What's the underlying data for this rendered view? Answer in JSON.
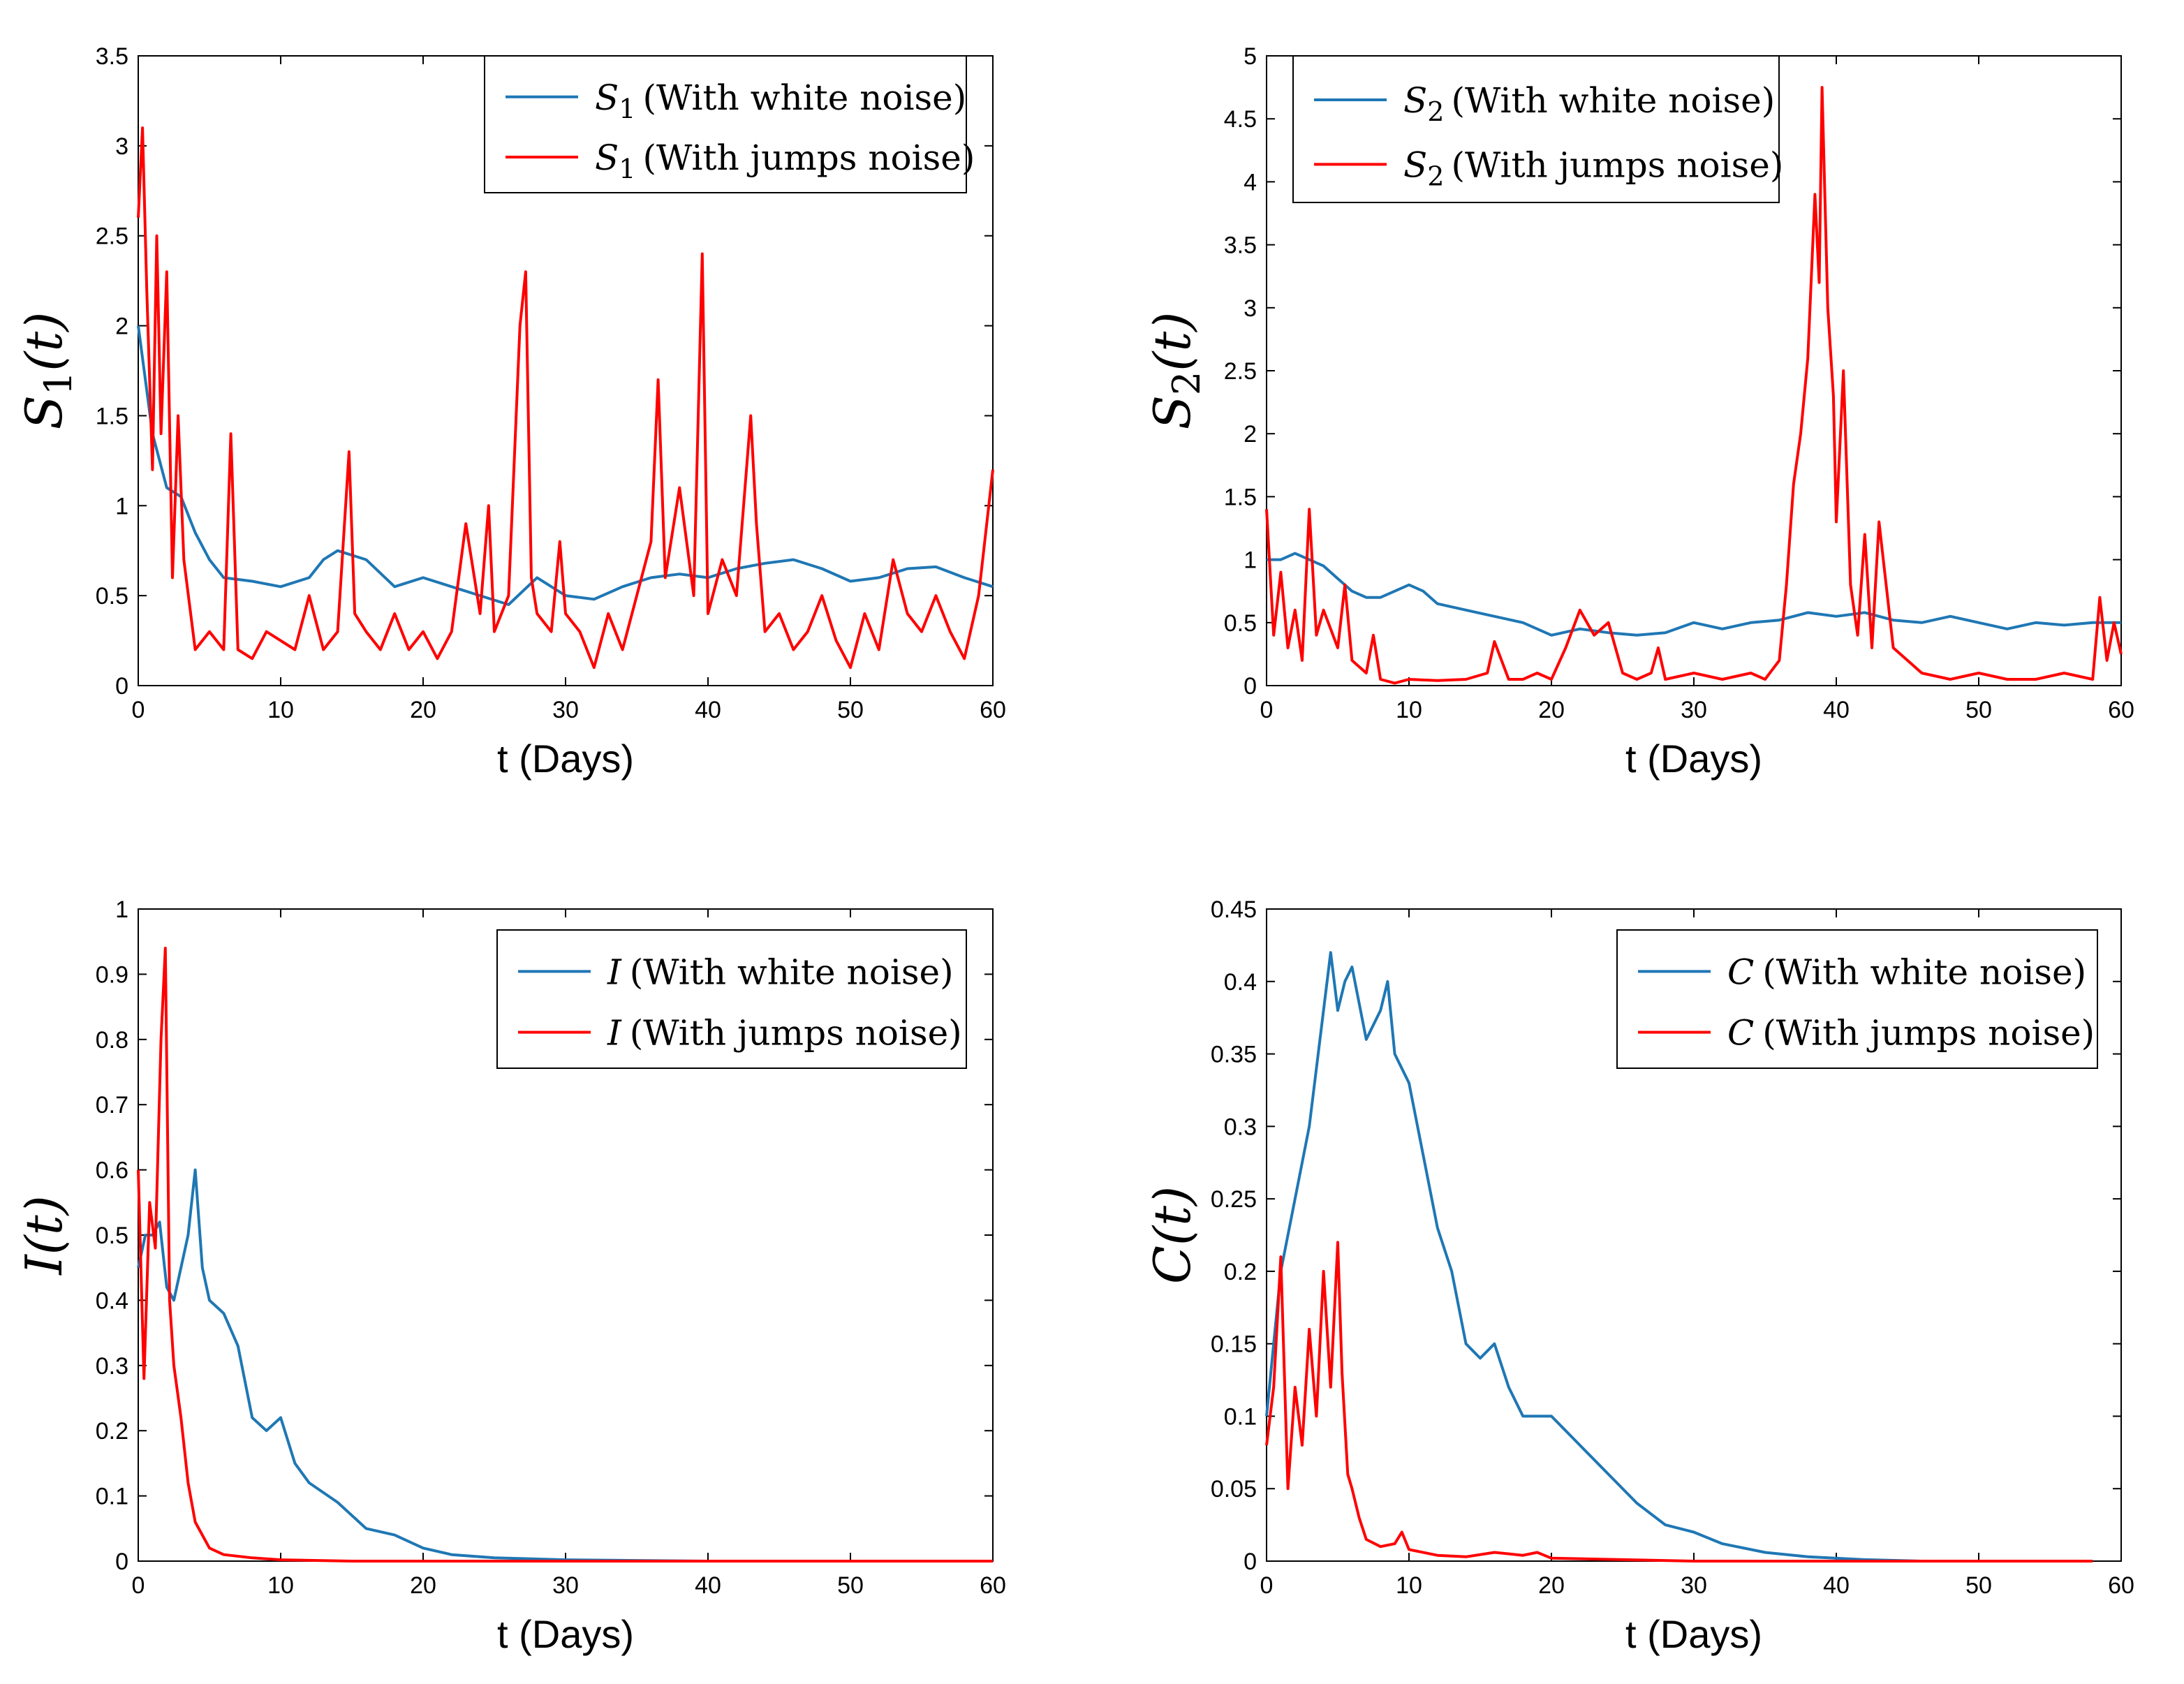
{
  "figure": {
    "description_note": ""
  },
  "colors": {
    "white_noise": "#1f77b4",
    "jumps_noise": "#ff0000",
    "axis": "#000000"
  },
  "chart_data": [
    {
      "id": "s1",
      "type": "line",
      "ylabel": "S1(t)",
      "ylabel_main": "S",
      "ylabel_sub": "1",
      "ylabel_tail": "(t)",
      "xlabel": "t (Days)",
      "xlim": [
        0,
        60
      ],
      "ylim": [
        0,
        3.5
      ],
      "xticks": [
        "0",
        "10",
        "20",
        "30",
        "40",
        "50",
        "60"
      ],
      "yticks": [
        "0",
        "0.5",
        "1",
        "1.5",
        "2",
        "2.5",
        "3",
        "3.5"
      ],
      "legend_position": "top-right",
      "legend": [
        {
          "symbol": "S",
          "sub": "1",
          "text": "(With white noise)"
        },
        {
          "symbol": "S",
          "sub": "1",
          "text": "(With jumps noise)"
        }
      ],
      "series": [
        {
          "name": "S1 (With white noise)",
          "color_key": "white_noise",
          "x": [
            0,
            1,
            2,
            3,
            4,
            5,
            6,
            8,
            10,
            12,
            13,
            14,
            16,
            18,
            20,
            22,
            24,
            26,
            28,
            30,
            32,
            34,
            36,
            38,
            40,
            42,
            44,
            46,
            48,
            50,
            52,
            54,
            56,
            58,
            60
          ],
          "y": [
            2.0,
            1.4,
            1.1,
            1.05,
            0.85,
            0.7,
            0.6,
            0.58,
            0.55,
            0.6,
            0.7,
            0.75,
            0.7,
            0.55,
            0.6,
            0.55,
            0.5,
            0.45,
            0.6,
            0.5,
            0.48,
            0.55,
            0.6,
            0.62,
            0.6,
            0.65,
            0.68,
            0.7,
            0.65,
            0.58,
            0.6,
            0.65,
            0.66,
            0.6,
            0.55
          ]
        },
        {
          "name": "S1 (With jumps noise)",
          "color_key": "jumps_noise",
          "x": [
            0,
            0.3,
            0.6,
            1,
            1.3,
            1.6,
            2,
            2.4,
            2.8,
            3.2,
            4,
            5,
            6,
            6.5,
            7,
            8,
            9,
            10,
            11,
            12,
            13,
            14,
            14.8,
            15.2,
            16,
            17,
            18,
            19,
            20,
            21,
            22,
            23,
            24,
            24.6,
            25,
            26,
            26.8,
            27.2,
            27.6,
            28,
            29,
            29.6,
            30,
            31,
            32,
            33,
            34,
            35,
            36,
            36.5,
            37,
            38,
            39,
            39.6,
            40,
            41,
            42,
            43,
            43.4,
            44,
            45,
            46,
            47,
            48,
            49,
            50,
            51,
            52,
            53,
            54,
            55,
            56,
            57,
            58,
            59,
            60
          ],
          "y": [
            2.6,
            3.1,
            2.2,
            1.2,
            2.5,
            1.4,
            2.3,
            0.6,
            1.5,
            0.7,
            0.2,
            0.3,
            0.2,
            1.4,
            0.2,
            0.15,
            0.3,
            0.25,
            0.2,
            0.5,
            0.2,
            0.3,
            1.3,
            0.4,
            0.3,
            0.2,
            0.4,
            0.2,
            0.3,
            0.15,
            0.3,
            0.9,
            0.4,
            1.0,
            0.3,
            0.5,
            2.0,
            2.3,
            0.6,
            0.4,
            0.3,
            0.8,
            0.4,
            0.3,
            0.1,
            0.4,
            0.2,
            0.5,
            0.8,
            1.7,
            0.6,
            1.1,
            0.5,
            2.4,
            0.4,
            0.7,
            0.5,
            1.5,
            0.9,
            0.3,
            0.4,
            0.2,
            0.3,
            0.5,
            0.25,
            0.1,
            0.4,
            0.2,
            0.7,
            0.4,
            0.3,
            0.5,
            0.3,
            0.15,
            0.5,
            1.2
          ]
        }
      ]
    },
    {
      "id": "s2",
      "type": "line",
      "ylabel": "S2(t)",
      "ylabel_main": "S",
      "ylabel_sub": "2",
      "ylabel_tail": "(t)",
      "xlabel": "t (Days)",
      "xlim": [
        0,
        60
      ],
      "ylim": [
        0,
        5
      ],
      "xticks": [
        "0",
        "10",
        "20",
        "30",
        "40",
        "50",
        "60"
      ],
      "yticks": [
        "0",
        "0.5",
        "1",
        "1.5",
        "2",
        "2.5",
        "3",
        "3.5",
        "4",
        "4.5",
        "5"
      ],
      "legend_position": "top-left",
      "legend": [
        {
          "symbol": "S",
          "sub": "2",
          "text": "(With white noise)"
        },
        {
          "symbol": "S",
          "sub": "2",
          "text": "(With jumps noise)"
        }
      ],
      "series": [
        {
          "name": "S2 (With white noise)",
          "color_key": "white_noise",
          "x": [
            0,
            1,
            2,
            3,
            4,
            5,
            6,
            7,
            8,
            9,
            10,
            11,
            12,
            14,
            16,
            18,
            20,
            22,
            24,
            26,
            28,
            30,
            32,
            34,
            36,
            38,
            40,
            42,
            44,
            46,
            48,
            50,
            52,
            54,
            56,
            58,
            60
          ],
          "y": [
            1.0,
            1.0,
            1.05,
            1.0,
            0.95,
            0.85,
            0.75,
            0.7,
            0.7,
            0.75,
            0.8,
            0.75,
            0.65,
            0.6,
            0.55,
            0.5,
            0.4,
            0.45,
            0.42,
            0.4,
            0.42,
            0.5,
            0.45,
            0.5,
            0.52,
            0.58,
            0.55,
            0.58,
            0.52,
            0.5,
            0.55,
            0.5,
            0.45,
            0.5,
            0.48,
            0.5,
            0.5
          ]
        },
        {
          "name": "S2 (With jumps noise)",
          "color_key": "jumps_noise",
          "x": [
            0,
            0.5,
            1,
            1.5,
            2,
            2.5,
            3,
            3.5,
            4,
            5,
            5.5,
            6,
            7,
            7.5,
            8,
            9,
            10,
            12,
            14,
            15.5,
            16,
            17,
            18,
            19,
            20,
            21,
            22,
            23,
            24,
            25,
            26,
            27,
            27.5,
            28,
            30,
            32,
            34,
            35,
            36,
            36.5,
            37,
            37.5,
            38,
            38.5,
            38.8,
            39,
            39.4,
            39.8,
            40,
            40.5,
            41,
            41.5,
            42,
            42.5,
            43,
            43.5,
            44,
            45,
            46,
            48,
            50,
            52,
            54,
            56,
            58,
            58.5,
            59,
            59.5,
            60
          ],
          "y": [
            1.4,
            0.4,
            0.9,
            0.3,
            0.6,
            0.2,
            1.4,
            0.4,
            0.6,
            0.3,
            0.8,
            0.2,
            0.1,
            0.4,
            0.05,
            0.02,
            0.05,
            0.04,
            0.05,
            0.1,
            0.35,
            0.05,
            0.05,
            0.1,
            0.05,
            0.3,
            0.6,
            0.4,
            0.5,
            0.1,
            0.05,
            0.1,
            0.3,
            0.05,
            0.1,
            0.05,
            0.1,
            0.05,
            0.2,
            0.8,
            1.6,
            2.0,
            2.6,
            3.9,
            3.2,
            4.75,
            3.0,
            2.3,
            1.3,
            2.5,
            0.8,
            0.4,
            1.2,
            0.3,
            1.3,
            0.8,
            0.3,
            0.2,
            0.1,
            0.05,
            0.1,
            0.05,
            0.05,
            0.1,
            0.05,
            0.7,
            0.2,
            0.5,
            0.25
          ]
        }
      ]
    },
    {
      "id": "i",
      "type": "line",
      "ylabel": "I(t)",
      "ylabel_main": "I",
      "ylabel_sub": "",
      "ylabel_tail": "(t)",
      "xlabel": "t (Days)",
      "xlim": [
        0,
        60
      ],
      "ylim": [
        0,
        1
      ],
      "xticks": [
        "0",
        "10",
        "20",
        "30",
        "40",
        "50",
        "60"
      ],
      "yticks": [
        "0",
        "0.1",
        "0.2",
        "0.3",
        "0.4",
        "0.5",
        "0.6",
        "0.7",
        "0.8",
        "0.9",
        "1"
      ],
      "legend_position": "top-right",
      "legend": [
        {
          "symbol": "I",
          "sub": "",
          "text": "(With white noise)"
        },
        {
          "symbol": "I",
          "sub": "",
          "text": "(With jumps noise)"
        }
      ],
      "series": [
        {
          "name": "I (With white noise)",
          "color_key": "white_noise",
          "x": [
            0,
            0.5,
            1,
            1.5,
            2,
            2.5,
            3,
            3.5,
            4,
            4.5,
            5,
            6,
            7,
            8,
            9,
            10,
            11,
            12,
            14,
            16,
            18,
            20,
            22,
            25,
            30,
            35,
            40,
            50,
            60
          ],
          "y": [
            0.45,
            0.5,
            0.5,
            0.52,
            0.42,
            0.4,
            0.45,
            0.5,
            0.6,
            0.45,
            0.4,
            0.38,
            0.33,
            0.22,
            0.2,
            0.22,
            0.15,
            0.12,
            0.09,
            0.05,
            0.04,
            0.02,
            0.01,
            0.005,
            0.002,
            0.001,
            0.0,
            0.0,
            0.0
          ]
        },
        {
          "name": "I (With jumps noise)",
          "color_key": "jumps_noise",
          "x": [
            0,
            0.4,
            0.8,
            1.2,
            1.6,
            1.9,
            2.2,
            2.5,
            3,
            3.5,
            4,
            5,
            6,
            8,
            10,
            15,
            20,
            30,
            40,
            50,
            60
          ],
          "y": [
            0.6,
            0.28,
            0.55,
            0.48,
            0.8,
            0.94,
            0.4,
            0.3,
            0.22,
            0.12,
            0.06,
            0.02,
            0.01,
            0.005,
            0.002,
            0.0,
            0.0,
            0.0,
            0.0,
            0.0,
            0.0
          ]
        }
      ]
    },
    {
      "id": "c",
      "type": "line",
      "ylabel": "C(t)",
      "ylabel_main": "C",
      "ylabel_sub": "",
      "ylabel_tail": "(t)",
      "xlabel": "t (Days)",
      "xlim": [
        0,
        60
      ],
      "ylim": [
        0,
        0.45
      ],
      "xticks": [
        "0",
        "10",
        "20",
        "30",
        "40",
        "50",
        "60"
      ],
      "yticks": [
        "0",
        "0.05",
        "0.1",
        "0.15",
        "0.2",
        "0.25",
        "0.3",
        "0.35",
        "0.4",
        "0.45"
      ],
      "legend_position": "top-right",
      "legend": [
        {
          "symbol": "C",
          "sub": "",
          "text": "(With white noise)"
        },
        {
          "symbol": "C",
          "sub": "",
          "text": "(With jumps noise)"
        }
      ],
      "series": [
        {
          "name": "C (With white noise)",
          "color_key": "white_noise",
          "x": [
            0,
            1,
            2,
            3,
            4,
            4.5,
            5,
            5.5,
            6,
            7,
            8,
            8.5,
            9,
            10,
            11,
            12,
            13,
            14,
            15,
            16,
            17,
            18,
            20,
            22,
            24,
            26,
            28,
            30,
            32,
            35,
            38,
            42,
            46,
            50,
            55,
            58
          ],
          "y": [
            0.1,
            0.2,
            0.25,
            0.3,
            0.38,
            0.42,
            0.38,
            0.4,
            0.41,
            0.36,
            0.38,
            0.4,
            0.35,
            0.33,
            0.28,
            0.23,
            0.2,
            0.15,
            0.14,
            0.15,
            0.12,
            0.1,
            0.1,
            0.08,
            0.06,
            0.04,
            0.025,
            0.02,
            0.012,
            0.006,
            0.003,
            0.001,
            0.0,
            0.0,
            0.0,
            0.0
          ]
        },
        {
          "name": "C (With jumps noise)",
          "color_key": "jumps_noise",
          "x": [
            0,
            0.5,
            1,
            1.5,
            2,
            2.5,
            3,
            3.5,
            4,
            4.5,
            5,
            5.3,
            5.7,
            6,
            6.5,
            7,
            8,
            9,
            9.5,
            10,
            12,
            14,
            16,
            18,
            19,
            20,
            25,
            30,
            40,
            50,
            58
          ],
          "y": [
            0.08,
            0.12,
            0.21,
            0.05,
            0.12,
            0.08,
            0.16,
            0.1,
            0.2,
            0.12,
            0.22,
            0.13,
            0.06,
            0.05,
            0.03,
            0.015,
            0.01,
            0.012,
            0.02,
            0.008,
            0.004,
            0.003,
            0.006,
            0.004,
            0.006,
            0.002,
            0.001,
            0.0,
            0.0,
            0.0,
            0.0
          ]
        }
      ]
    }
  ]
}
